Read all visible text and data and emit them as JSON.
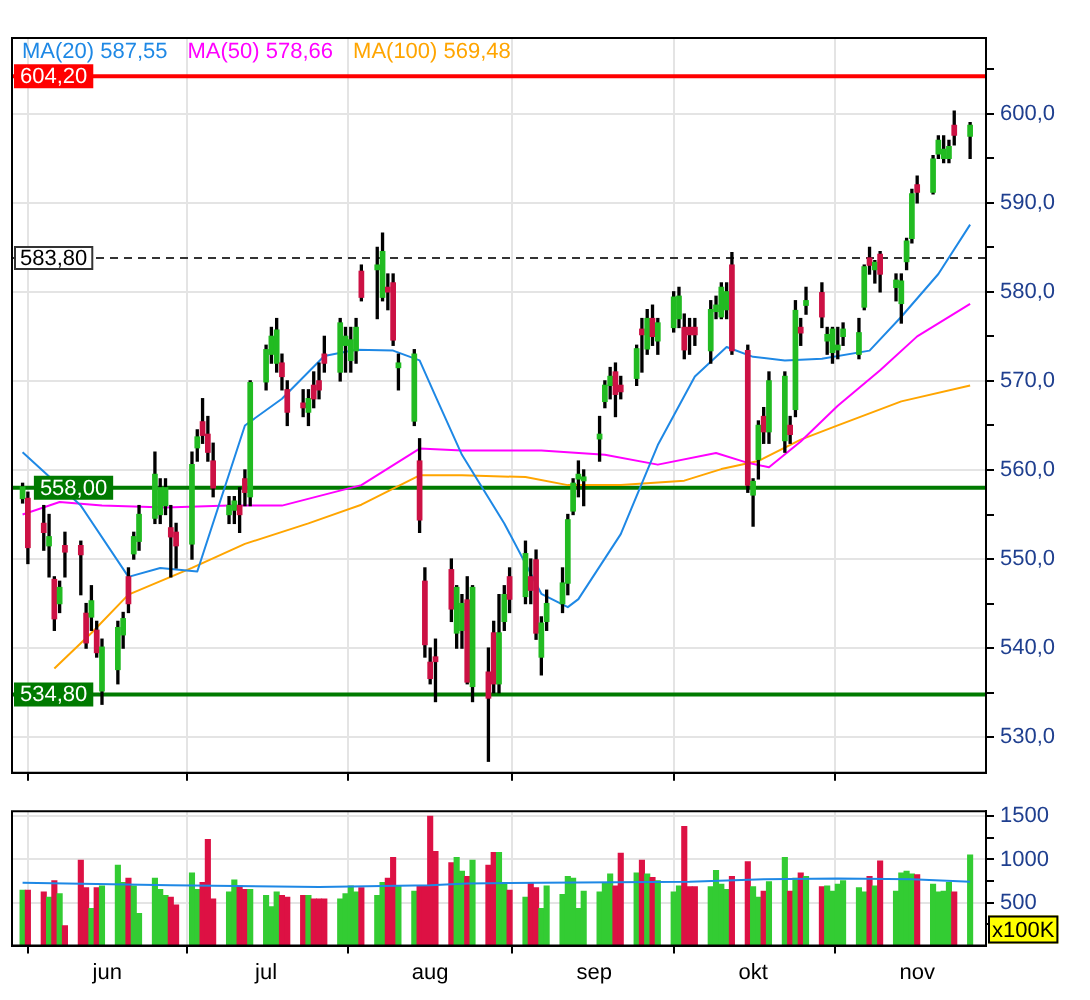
{
  "chart_data": [
    {
      "type": "candlestick",
      "tick_labels": "y",
      "grid": true,
      "legend": "top left",
      "xlim": [
        "--05-14",
        "--11-14"
      ],
      "xticks": [
        {
          "value": "--06-01",
          "label": null
        },
        {
          "value": "--07-01",
          "label": null
        },
        {
          "value": "--08-01",
          "label": null
        },
        {
          "value": "--09-01",
          "label": null
        },
        {
          "value": "--10-01",
          "label": null
        },
        {
          "value": "--11-01",
          "label": null
        }
      ],
      "ylim": [
        526,
        608.5
      ],
      "yticks": [
        {
          "value": 530,
          "label": "530,0"
        },
        {
          "value": 535,
          "label": null
        },
        {
          "value": 540,
          "label": "540,0"
        },
        {
          "value": 545,
          "label": null
        },
        {
          "value": 550,
          "label": "550,0"
        },
        {
          "value": 555,
          "label": null
        },
        {
          "value": 560,
          "label": "560,0"
        },
        {
          "value": 565,
          "label": null
        },
        {
          "value": 570,
          "label": "570,0"
        },
        {
          "value": 575,
          "label": null
        },
        {
          "value": 580,
          "label": "580,0"
        },
        {
          "value": 585,
          "label": null
        },
        {
          "value": 590,
          "label": "590,0"
        },
        {
          "value": 595,
          "label": null
        },
        {
          "value": 600,
          "label": "600,0"
        },
        {
          "value": 605,
          "label": null
        }
      ],
      "x": [
        "--05-16",
        "--05-17",
        "--05-20",
        "--05-21",
        "--05-22",
        "--05-23",
        "--05-24",
        "--05-27",
        "--05-28",
        "--05-29",
        "--05-30",
        "--05-31",
        "--06-03",
        "--06-04",
        "--06-05",
        "--06-06",
        "--06-07",
        "--06-10",
        "--06-11",
        "--06-12",
        "--06-13",
        "--06-14",
        "--06-17",
        "--06-18",
        "--06-19",
        "--06-20",
        "--06-21",
        "--06-24",
        "--06-25",
        "--06-26",
        "--06-27",
        "--06-28",
        "--07-01",
        "--07-02",
        "--07-03",
        "--07-04",
        "--07-05",
        "--07-08",
        "--07-09",
        "--07-10",
        "--07-11",
        "--07-12",
        "--07-15",
        "--07-16",
        "--07-17",
        "--07-18",
        "--07-19",
        "--07-22",
        "--07-23",
        "--07-24",
        "--07-25",
        "--07-26",
        "--07-29",
        "--07-30",
        "--07-31",
        "--08-01",
        "--08-02",
        "--08-05",
        "--08-06",
        "--08-07",
        "--08-08",
        "--08-09",
        "--08-12",
        "--08-13",
        "--08-14",
        "--08-15",
        "--08-16",
        "--08-19",
        "--08-20",
        "--08-21",
        "--08-22",
        "--08-23",
        "--08-26",
        "--08-27",
        "--08-28",
        "--08-29",
        "--08-30",
        "--09-02",
        "--09-03",
        "--09-04",
        "--09-05",
        "--09-06",
        "--09-09",
        "--09-10",
        "--09-11",
        "--09-12",
        "--09-13",
        "--09-16",
        "--09-17",
        "--09-18",
        "--09-19",
        "--09-20",
        "--09-23",
        "--09-24",
        "--09-25",
        "--09-26",
        "--09-27",
        "--09-30",
        "--10-01",
        "--10-02",
        "--10-03",
        "--10-04",
        "--10-07",
        "--10-08",
        "--10-09",
        "--10-10",
        "--10-11",
        "--10-14",
        "--10-15",
        "--10-16",
        "--10-17",
        "--10-18",
        "--10-21",
        "--10-22",
        "--10-23",
        "--10-24",
        "--10-25",
        "--10-28",
        "--10-29",
        "--10-30",
        "--10-31",
        "--11-01",
        "--11-04",
        "--11-05",
        "--11-06",
        "--11-07",
        "--11-08",
        "--11-11"
      ],
      "ohlc": [
        [
          556.8,
          558.5,
          556.3,
          558.1
        ],
        [
          556.8,
          557.5,
          549.5,
          551.3
        ],
        [
          554,
          556,
          551,
          553
        ],
        [
          551.5,
          555,
          548,
          552.5
        ],
        [
          547.7,
          548,
          542,
          543.3
        ],
        [
          545,
          547.5,
          544,
          546.8
        ],
        [
          551.5,
          553,
          548,
          550.8
        ],
        [
          551.5,
          552,
          546,
          550.5
        ],
        [
          543.9,
          545,
          540,
          540.6
        ],
        [
          543.5,
          547,
          542,
          545.3
        ],
        [
          542,
          543,
          539,
          539.5
        ],
        [
          535.2,
          541,
          533.7,
          540.1
        ],
        [
          537.6,
          543,
          536,
          542.3
        ],
        [
          541.5,
          544,
          540,
          543.3
        ],
        [
          548,
          549,
          544,
          545
        ],
        [
          550.6,
          553,
          550,
          552.5
        ],
        [
          552,
          556,
          551,
          555
        ],
        [
          554.6,
          562,
          554,
          559.5
        ],
        [
          555,
          559,
          554,
          558
        ],
        [
          556,
          559,
          555,
          558
        ],
        [
          553.5,
          556,
          548,
          552.5
        ],
        [
          553,
          554,
          549,
          551.5
        ],
        [
          551.7,
          562,
          550,
          560.6
        ],
        [
          562.5,
          564.5,
          561,
          563.7
        ],
        [
          565.4,
          568,
          563,
          563.9
        ],
        [
          564,
          566,
          561,
          562
        ],
        [
          561,
          563,
          557,
          558
        ],
        [
          555,
          557,
          554,
          556
        ],
        [
          555.5,
          557,
          554,
          556.5
        ],
        [
          556,
          558,
          553,
          555
        ],
        [
          559,
          560,
          556,
          557.5
        ],
        [
          557,
          570,
          556,
          569.8
        ],
        [
          569.9,
          574,
          569,
          573.5
        ],
        [
          573,
          576,
          572,
          575
        ],
        [
          572,
          577,
          571,
          575.7
        ],
        [
          572,
          573,
          569,
          570.5
        ],
        [
          569,
          570,
          565,
          566.5
        ],
        [
          567.5,
          569,
          566,
          567
        ],
        [
          566.5,
          569,
          565,
          568
        ],
        [
          569.5,
          571,
          567,
          568
        ],
        [
          570,
          572,
          568,
          569
        ],
        [
          573,
          575,
          571,
          572
        ],
        [
          571,
          577,
          570,
          576.5
        ],
        [
          574,
          576,
          571,
          575
        ],
        [
          572.3,
          576,
          571,
          574.6
        ],
        [
          573.4,
          577,
          572,
          576
        ],
        [
          582.3,
          583,
          579,
          579.4
        ],
        [
          582.5,
          585,
          577,
          583
        ],
        [
          579.4,
          586.6,
          579,
          584.5
        ],
        [
          580.5,
          582,
          578,
          580
        ],
        [
          581,
          582,
          574,
          574.6
        ],
        [
          571.5,
          573,
          569,
          572
        ],
        [
          565.5,
          573.5,
          565,
          573
        ],
        [
          561,
          563.5,
          553,
          554.4
        ],
        [
          547.5,
          549,
          539,
          540.4
        ],
        [
          538.4,
          540,
          536,
          536.6
        ],
        [
          539,
          541,
          534,
          538.5
        ],
        [
          548.8,
          550,
          543,
          544.4
        ],
        [
          541.7,
          547,
          540,
          546.8
        ],
        [
          542,
          546,
          540,
          545
        ],
        [
          545.4,
          548,
          536,
          536.2
        ],
        [
          535.7,
          547,
          534,
          546.8
        ],
        [
          537.3,
          540,
          527.3,
          534.4
        ],
        [
          541.7,
          543,
          535,
          536
        ],
        [
          536,
          546,
          535,
          541.7
        ],
        [
          543,
          547,
          542,
          546
        ],
        [
          548,
          549,
          544,
          545.5
        ],
        [
          545.8,
          552,
          545,
          550.6
        ],
        [
          548,
          550,
          545,
          546.5
        ],
        [
          549.9,
          551,
          541,
          541.7
        ],
        [
          539,
          543.5,
          537,
          542.8
        ],
        [
          543,
          546.5,
          542,
          545
        ],
        [
          545,
          549,
          544,
          547.3
        ],
        [
          547.3,
          555,
          546,
          554.4
        ],
        [
          555.4,
          559,
          555,
          558.5
        ],
        [
          559,
          561,
          557,
          559.5
        ],
        [
          558.8,
          560,
          556,
          559.2
        ],
        [
          563.5,
          566,
          561,
          564
        ],
        [
          567.7,
          570,
          567,
          569.5
        ],
        [
          569.5,
          571.5,
          568,
          570.5
        ],
        [
          571,
          572,
          566,
          568.5
        ],
        [
          569.5,
          570.5,
          568,
          568.8
        ],
        [
          570.3,
          574,
          569.5,
          573.6
        ],
        [
          575.8,
          577,
          571,
          575.2
        ],
        [
          573.6,
          578,
          573,
          577
        ],
        [
          577,
          578.5,
          574,
          575
        ],
        [
          574.5,
          577,
          573,
          576.5
        ],
        [
          576,
          580,
          575.5,
          579.4
        ],
        [
          577,
          580.5,
          576,
          579.5
        ],
        [
          576,
          577.5,
          572.5,
          573.5
        ],
        [
          576,
          577,
          573,
          575.2
        ],
        [
          576,
          577,
          574,
          575.2
        ],
        [
          573.4,
          579,
          572,
          578
        ],
        [
          577.8,
          579.5,
          577,
          578.5
        ],
        [
          577.2,
          581,
          577,
          580.5
        ],
        [
          578,
          581,
          577,
          580
        ],
        [
          583,
          584.4,
          573,
          573.4
        ],
        [
          573.4,
          574,
          557.5,
          558.3
        ],
        [
          557.2,
          559,
          553.7,
          558.7
        ],
        [
          561.2,
          565.5,
          559,
          565
        ],
        [
          566,
          567,
          563,
          564.3
        ],
        [
          564.3,
          571,
          563,
          570
        ],
        [
          563.3,
          571,
          562,
          570.5
        ],
        [
          565,
          566,
          563,
          564
        ],
        [
          566.8,
          579,
          566,
          577.9
        ],
        [
          576,
          577,
          574,
          575.4
        ],
        [
          578.5,
          580.5,
          577.5,
          579
        ],
        [
          579.9,
          581,
          576,
          577.2
        ],
        [
          574.5,
          576,
          573,
          575.2
        ],
        [
          573.2,
          576,
          572,
          575.8
        ],
        [
          573.5,
          576,
          572.5,
          574
        ],
        [
          575,
          576.5,
          574,
          575.8
        ],
        [
          573,
          577,
          572.5,
          575.4
        ],
        [
          578.3,
          583,
          578,
          582.8
        ],
        [
          583.8,
          585,
          582,
          583
        ],
        [
          582.5,
          583.5,
          581,
          583.3
        ],
        [
          584.2,
          584.5,
          580,
          582
        ],
        [
          580.5,
          582,
          579,
          581.3
        ],
        [
          578.7,
          582,
          576.5,
          581.2
        ],
        [
          583.4,
          586,
          582.5,
          585.7
        ],
        [
          586,
          591.5,
          585.5,
          591
        ],
        [
          592,
          593,
          590,
          591.2
        ],
        [
          591.2,
          595.3,
          591,
          594.9
        ],
        [
          595.5,
          597.5,
          595,
          597
        ],
        [
          595,
          597.5,
          594.5,
          596
        ],
        [
          595,
          597,
          594.5,
          596.3
        ],
        [
          598.7,
          600.3,
          596.5,
          597.6
        ],
        [
          597.5,
          599,
          595,
          598.7
        ]
      ],
      "series": [
        {
          "type": "line",
          "name": "MA(20) 587,55",
          "color": "#1e88e5",
          "x": [
            "--05-16",
            "--05-27",
            "--06-05",
            "--06-11",
            "--06-18",
            "--06-27",
            "--07-04",
            "--07-12",
            "--07-18",
            "--07-25",
            "--07-30",
            "--08-02",
            "--08-07",
            "--08-15",
            "--08-22",
            "--08-27",
            "--08-29",
            "--09-06",
            "--09-13",
            "--09-20",
            "--09-26",
            "--10-01",
            "--10-07",
            "--10-14",
            "--10-23",
            "--10-29",
            "--11-05",
            "--11-11"
          ],
          "values": [
            562,
            556,
            548,
            549,
            548.6,
            565,
            568,
            572.8,
            573.5,
            573.4,
            572.3,
            568.3,
            561.7,
            554,
            546.1,
            544.6,
            545.5,
            552.8,
            562.8,
            570.5,
            573.8,
            572.7,
            572.3,
            572.5,
            573.4,
            577.2,
            582,
            587.55
          ]
        },
        {
          "type": "line",
          "name": "MA(50) 578,66",
          "color": "#ff00ff",
          "x": [
            "--05-16",
            "--05-23",
            "--05-31",
            "--06-12",
            "--06-24",
            "--07-04",
            "--07-19",
            "--07-30",
            "--08-07",
            "--08-22",
            "--09-03",
            "--09-13",
            "--09-24",
            "--09-30",
            "--10-04",
            "--10-10",
            "--10-17",
            "--10-25",
            "--11-01",
            "--11-11"
          ],
          "values": [
            555,
            556.4,
            556,
            555.8,
            556,
            556,
            558.3,
            562.4,
            562.2,
            562.2,
            561.7,
            560.6,
            561.9,
            560.8,
            560.3,
            563.2,
            567.2,
            571.2,
            575,
            578.66
          ]
        },
        {
          "type": "line",
          "name": "MA(100) 569,48",
          "color": "#ffa500",
          "x": [
            "--05-22",
            "--05-29",
            "--06-05",
            "--06-17",
            "--06-27",
            "--07-09",
            "--07-19",
            "--07-30",
            "--08-07",
            "--08-19",
            "--08-27",
            "--09-06",
            "--09-18",
            "--09-25",
            "--10-02",
            "--10-10",
            "--10-17",
            "--10-29",
            "--11-11"
          ],
          "values": [
            537.7,
            541.7,
            546,
            549,
            551.7,
            554,
            556.1,
            559.4,
            559.4,
            559.2,
            558.3,
            558.3,
            558.8,
            560.1,
            561,
            563.4,
            565,
            567.7,
            569.48
          ]
        }
      ],
      "ref_lines": [
        {
          "axis": "y",
          "value": 604.2,
          "label": "604,20",
          "color": "#ff0000"
        },
        {
          "axis": "y",
          "value": 583.8,
          "label": "583,80",
          "color": "#333333",
          "line_style": "dashed"
        },
        {
          "axis": "y",
          "value": 558,
          "label": "558,00",
          "color": "#007a00"
        },
        {
          "axis": "y",
          "value": 534.8,
          "label": "534,80",
          "color": "#007a00"
        }
      ]
    },
    {
      "type": "bar",
      "grid": true,
      "ylabel": "x100K",
      "xlim": [
        "--05-14",
        "--11-14"
      ],
      "xticks": [
        {
          "value": "--06-01",
          "label": "jun"
        },
        {
          "value": "--07-01",
          "label": "jul"
        },
        {
          "value": "--08-01",
          "label": "aug"
        },
        {
          "value": "--09-01",
          "label": "sep"
        },
        {
          "value": "--10-01",
          "label": "okt"
        },
        {
          "value": "--11-01",
          "label": "nov"
        }
      ],
      "ylim": [
        0,
        1560
      ],
      "yticks": [
        {
          "value": 250,
          "label": null
        },
        500,
        {
          "value": 750,
          "label": null
        },
        1000,
        {
          "value": 1250,
          "label": null
        },
        1500
      ],
      "x": [
        "--05-16",
        "--05-17",
        "--05-20",
        "--05-21",
        "--05-22",
        "--05-23",
        "--05-24",
        "--05-27",
        "--05-28",
        "--05-29",
        "--05-30",
        "--05-31",
        "--06-03",
        "--06-04",
        "--06-05",
        "--06-06",
        "--06-07",
        "--06-10",
        "--06-11",
        "--06-12",
        "--06-13",
        "--06-14",
        "--06-17",
        "--06-18",
        "--06-19",
        "--06-20",
        "--06-21",
        "--06-24",
        "--06-25",
        "--06-26",
        "--06-27",
        "--06-28",
        "--07-01",
        "--07-02",
        "--07-03",
        "--07-04",
        "--07-05",
        "--07-08",
        "--07-09",
        "--07-10",
        "--07-11",
        "--07-12",
        "--07-15",
        "--07-16",
        "--07-17",
        "--07-18",
        "--07-19",
        "--07-22",
        "--07-23",
        "--07-24",
        "--07-25",
        "--07-26",
        "--07-29",
        "--07-30",
        "--07-31",
        "--08-01",
        "--08-02",
        "--08-05",
        "--08-06",
        "--08-07",
        "--08-08",
        "--08-09",
        "--08-12",
        "--08-13",
        "--08-14",
        "--08-15",
        "--08-16",
        "--08-19",
        "--08-20",
        "--08-21",
        "--08-22",
        "--08-23",
        "--08-26",
        "--08-27",
        "--08-28",
        "--08-29",
        "--08-30",
        "--09-02",
        "--09-03",
        "--09-04",
        "--09-05",
        "--09-06",
        "--09-09",
        "--09-10",
        "--09-11",
        "--09-12",
        "--09-13",
        "--09-16",
        "--09-17",
        "--09-18",
        "--09-19",
        "--09-20",
        "--09-23",
        "--09-24",
        "--09-25",
        "--09-26",
        "--09-27",
        "--09-30",
        "--10-01",
        "--10-02",
        "--10-03",
        "--10-04",
        "--10-07",
        "--10-08",
        "--10-09",
        "--10-10",
        "--10-11",
        "--10-14",
        "--10-15",
        "--10-16",
        "--10-17",
        "--10-18",
        "--10-21",
        "--10-22",
        "--10-23",
        "--10-24",
        "--10-25",
        "--10-28",
        "--10-29",
        "--10-30",
        "--10-31",
        "--11-01",
        "--11-04",
        "--11-05",
        "--11-06",
        "--11-07",
        "--11-08",
        "--11-11"
      ],
      "series": [
        {
          "type": "bar",
          "values": [
            640,
            640,
            620,
            560,
            750,
            600,
            230,
            990,
            670,
            430,
            670,
            690,
            930,
            730,
            780,
            690,
            370,
            780,
            650,
            580,
            560,
            470,
            840,
            650,
            730,
            1230,
            540,
            620,
            760,
            690,
            650,
            650,
            580,
            450,
            620,
            580,
            560,
            580,
            580,
            540,
            540,
            540,
            540,
            600,
            690,
            620,
            670,
            580,
            730,
            780,
            1020,
            690,
            630,
            690,
            690,
            1500,
            1090,
            960,
            1020,
            860,
            800,
            990,
            930,
            1080,
            1080,
            730,
            640,
            560,
            730,
            670,
            430,
            690,
            590,
            800,
            780,
            430,
            630,
            620,
            730,
            830,
            690,
            1070,
            840,
            990,
            830,
            790,
            750,
            620,
            690,
            1380,
            680,
            680,
            680,
            870,
            710,
            650,
            800,
            970,
            680,
            560,
            630,
            740,
            1020,
            630,
            780,
            840,
            800,
            680,
            690,
            630,
            710,
            750,
            670,
            620,
            800,
            690,
            980,
            630,
            840,
            860,
            830,
            820,
            710,
            620,
            630,
            730,
            620,
            1050
          ],
          "colors": [
            "#33cc33",
            "#dd1144",
            "#dd1144",
            "#33cc33",
            "#dd1144",
            "#33cc33",
            "#dd1144",
            "#dd1144",
            "#dd1144",
            "#33cc33",
            "#dd1144",
            "#33cc33",
            "#33cc33",
            "#33cc33",
            "#dd1144",
            "#33cc33",
            "#33cc33",
            "#33cc33",
            "#33cc33",
            "#33cc33",
            "#dd1144",
            "#dd1144",
            "#33cc33",
            "#33cc33",
            "#dd1144",
            "#dd1144",
            "#dd1144",
            "#33cc33",
            "#33cc33",
            "#dd1144",
            "#dd1144",
            "#33cc33",
            "#33cc33",
            "#33cc33",
            "#33cc33",
            "#dd1144",
            "#dd1144",
            "#dd1144",
            "#33cc33",
            "#dd1144",
            "#dd1144",
            "#dd1144",
            "#33cc33",
            "#33cc33",
            "#33cc33",
            "#33cc33",
            "#dd1144",
            "#33cc33",
            "#33cc33",
            "#dd1144",
            "#dd1144",
            "#33cc33",
            "#33cc33",
            "#dd1144",
            "#dd1144",
            "#dd1144",
            "#dd1144",
            "#dd1144",
            "#33cc33",
            "#33cc33",
            "#dd1144",
            "#33cc33",
            "#dd1144",
            "#dd1144",
            "#33cc33",
            "#33cc33",
            "#dd1144",
            "#33cc33",
            "#dd1144",
            "#dd1144",
            "#33cc33",
            "#33cc33",
            "#33cc33",
            "#33cc33",
            "#33cc33",
            "#33cc33",
            "#33cc33",
            "#33cc33",
            "#33cc33",
            "#33cc33",
            "#dd1144",
            "#dd1144",
            "#33cc33",
            "#dd1144",
            "#33cc33",
            "#dd1144",
            "#33cc33",
            "#33cc33",
            "#33cc33",
            "#dd1144",
            "#dd1144",
            "#dd1144",
            "#33cc33",
            "#33cc33",
            "#33cc33",
            "#33cc33",
            "#dd1144",
            "#dd1144",
            "#33cc33",
            "#33cc33",
            "#dd1144",
            "#33cc33",
            "#33cc33",
            "#dd1144",
            "#33cc33",
            "#dd1144",
            "#33cc33",
            "#dd1144",
            "#33cc33",
            "#33cc33",
            "#33cc33",
            "#33cc33",
            "#33cc33",
            "#33cc33",
            "#dd1144",
            "#33cc33",
            "#dd1144",
            "#33cc33",
            "#33cc33",
            "#33cc33",
            "#33cc33",
            "#dd1144",
            "#33cc33",
            "#33cc33",
            "#33cc33",
            "#33cc33",
            "#dd1144",
            "#33cc33"
          ]
        },
        {
          "type": "line",
          "color": "#1e88e5",
          "x": [
            "--05-16",
            "--06-13",
            "--07-11",
            "--08-01",
            "--08-08",
            "--08-22",
            "--09-19",
            "--10-03",
            "--10-17",
            "--10-31",
            "--11-11"
          ],
          "values": [
            730,
            700,
            680,
            700,
            720,
            730,
            740,
            770,
            780,
            770,
            740
          ]
        }
      ]
    }
  ]
}
